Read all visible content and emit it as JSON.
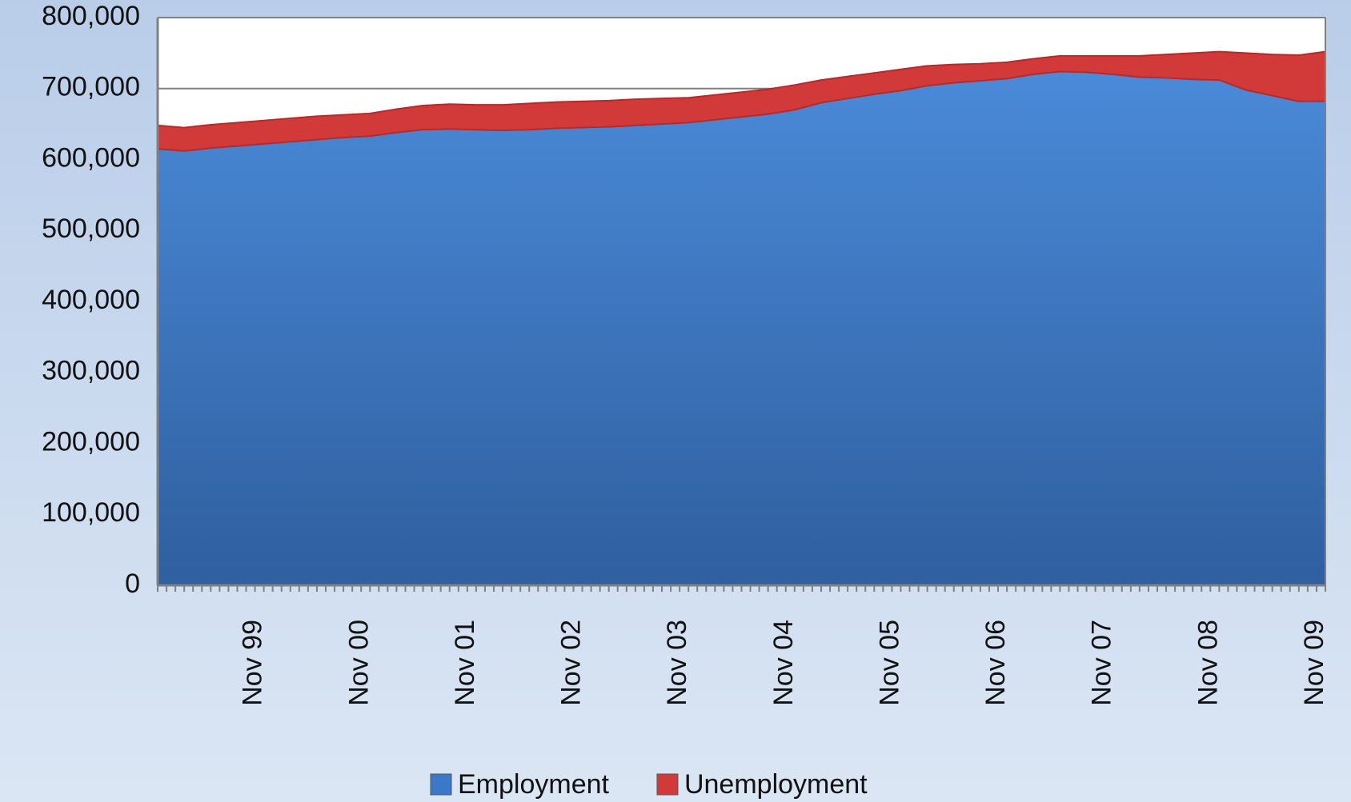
{
  "chart_data": {
    "type": "stacked_area",
    "categories": [
      null,
      null,
      null,
      null,
      "Nov 99",
      null,
      null,
      null,
      "Nov 00",
      null,
      null,
      null,
      "Nov 01",
      null,
      null,
      null,
      "Nov 02",
      null,
      null,
      null,
      "Nov 03",
      null,
      null,
      null,
      "Nov 04",
      null,
      null,
      null,
      "Nov 05",
      null,
      null,
      null,
      "Nov 06",
      null,
      null,
      null,
      "Nov 07",
      null,
      null,
      null,
      "Nov 08",
      null,
      null,
      null,
      "Nov 09"
    ],
    "series": [
      {
        "name": "Employment",
        "color": "#3a78c9",
        "values": [
          615000,
          612000,
          616000,
          619000,
          622000,
          625000,
          628000,
          631000,
          633000,
          638000,
          642000,
          643000,
          642000,
          641000,
          642000,
          644000,
          645000,
          646000,
          648000,
          650000,
          652000,
          656000,
          660000,
          664000,
          670000,
          680000,
          686000,
          692000,
          697000,
          704000,
          708000,
          711000,
          714000,
          720000,
          724000,
          723000,
          720000,
          716000,
          715000,
          713000,
          712000,
          698000,
          690000,
          682000,
          682000
        ]
      },
      {
        "name": "Unemployment",
        "color": "#d23a3a",
        "values": [
          33000,
          33000,
          33000,
          33000,
          33000,
          33000,
          33000,
          32000,
          32000,
          33000,
          34000,
          35000,
          35000,
          36000,
          37000,
          37000,
          37000,
          37000,
          37000,
          36000,
          35000,
          35000,
          35000,
          35000,
          35000,
          32000,
          31000,
          30000,
          30000,
          28000,
          26000,
          24000,
          23000,
          22000,
          22000,
          23000,
          26000,
          30000,
          33000,
          37000,
          40000,
          52000,
          58000,
          65000,
          70000
        ]
      }
    ],
    "ylim": [
      0,
      800000
    ],
    "yticks": [
      {
        "value": 0,
        "label": "0"
      },
      {
        "value": 100000,
        "label": "100,000"
      },
      {
        "value": 200000,
        "label": "200,000"
      },
      {
        "value": 300000,
        "label": "300,000"
      },
      {
        "value": 400000,
        "label": "400,000"
      },
      {
        "value": 500000,
        "label": "500,000"
      },
      {
        "value": 600000,
        "label": "600,000"
      },
      {
        "value": 700000,
        "label": "700,000"
      },
      {
        "value": 800000,
        "label": "800,000"
      }
    ],
    "grid": true
  }
}
